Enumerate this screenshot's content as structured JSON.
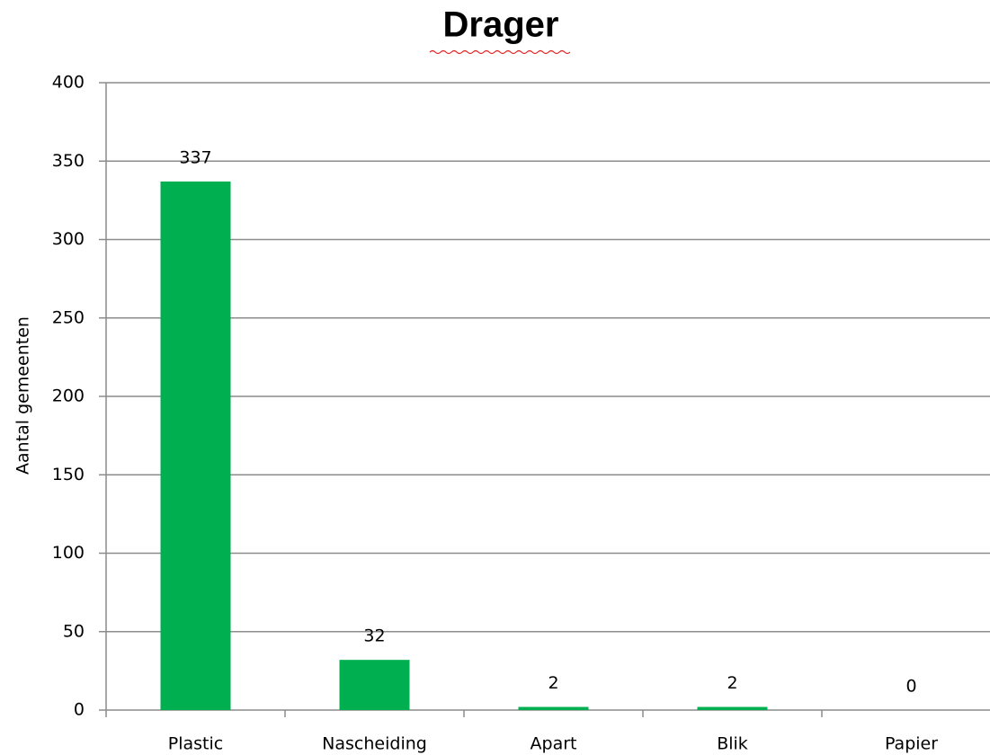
{
  "chart_data": {
    "type": "bar",
    "title": "Drager",
    "y_label": "Aantal gemeenten",
    "categories": [
      "Plastic",
      "Nascheiding",
      "Apart",
      "Blik",
      "Papier"
    ],
    "values": [
      337,
      32,
      2,
      2,
      0
    ],
    "color": "#00b050",
    "ylim": [
      0,
      400
    ],
    "yticks": [
      0,
      50,
      100,
      150,
      200,
      250,
      300,
      350,
      400
    ],
    "grid": true,
    "data_labels": true
  }
}
